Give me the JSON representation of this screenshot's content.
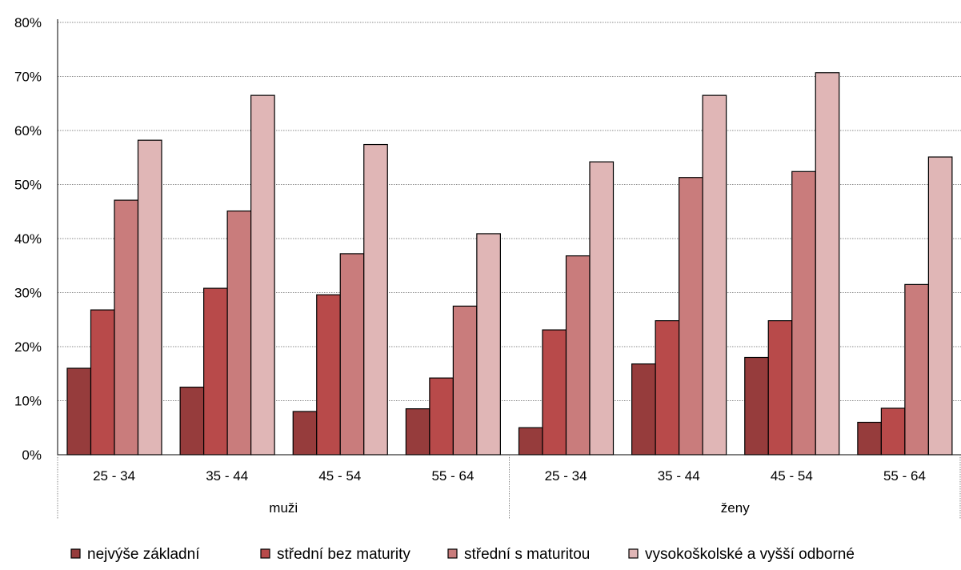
{
  "chart_data": {
    "type": "bar",
    "title": "",
    "xlabel": "",
    "ylabel": "",
    "ylim": [
      0,
      0.8
    ],
    "yticks": [
      "0%",
      "10%",
      "20%",
      "30%",
      "40%",
      "50%",
      "60%",
      "70%",
      "80%"
    ],
    "grid": true,
    "legend_position": "bottom",
    "groups": [
      {
        "label": "muži",
        "categories": [
          "25 - 34",
          "35 - 44",
          "45 - 54",
          "55 - 64"
        ]
      },
      {
        "label": "ženy",
        "categories": [
          "25 - 34",
          "35 - 44",
          "45 - 54",
          "55 - 64"
        ]
      }
    ],
    "series": [
      {
        "name": "nejvýše základní",
        "color": "#963c3c",
        "values": [
          0.16,
          0.125,
          0.08,
          0.085,
          0.05,
          0.168,
          0.18,
          0.06
        ]
      },
      {
        "name": "střední bez maturity",
        "color": "#b84a4a",
        "values": [
          0.268,
          0.308,
          0.296,
          0.142,
          0.231,
          0.248,
          0.248,
          0.086
        ]
      },
      {
        "name": "střední s maturitou",
        "color": "#c97c7c",
        "values": [
          0.471,
          0.451,
          0.372,
          0.275,
          0.368,
          0.513,
          0.524,
          0.315
        ]
      },
      {
        "name": "vysokoškolské a vyšší odborné",
        "color": "#e0b6b6",
        "values": [
          0.582,
          0.665,
          0.574,
          0.409,
          0.542,
          0.665,
          0.707,
          0.551
        ]
      }
    ]
  }
}
